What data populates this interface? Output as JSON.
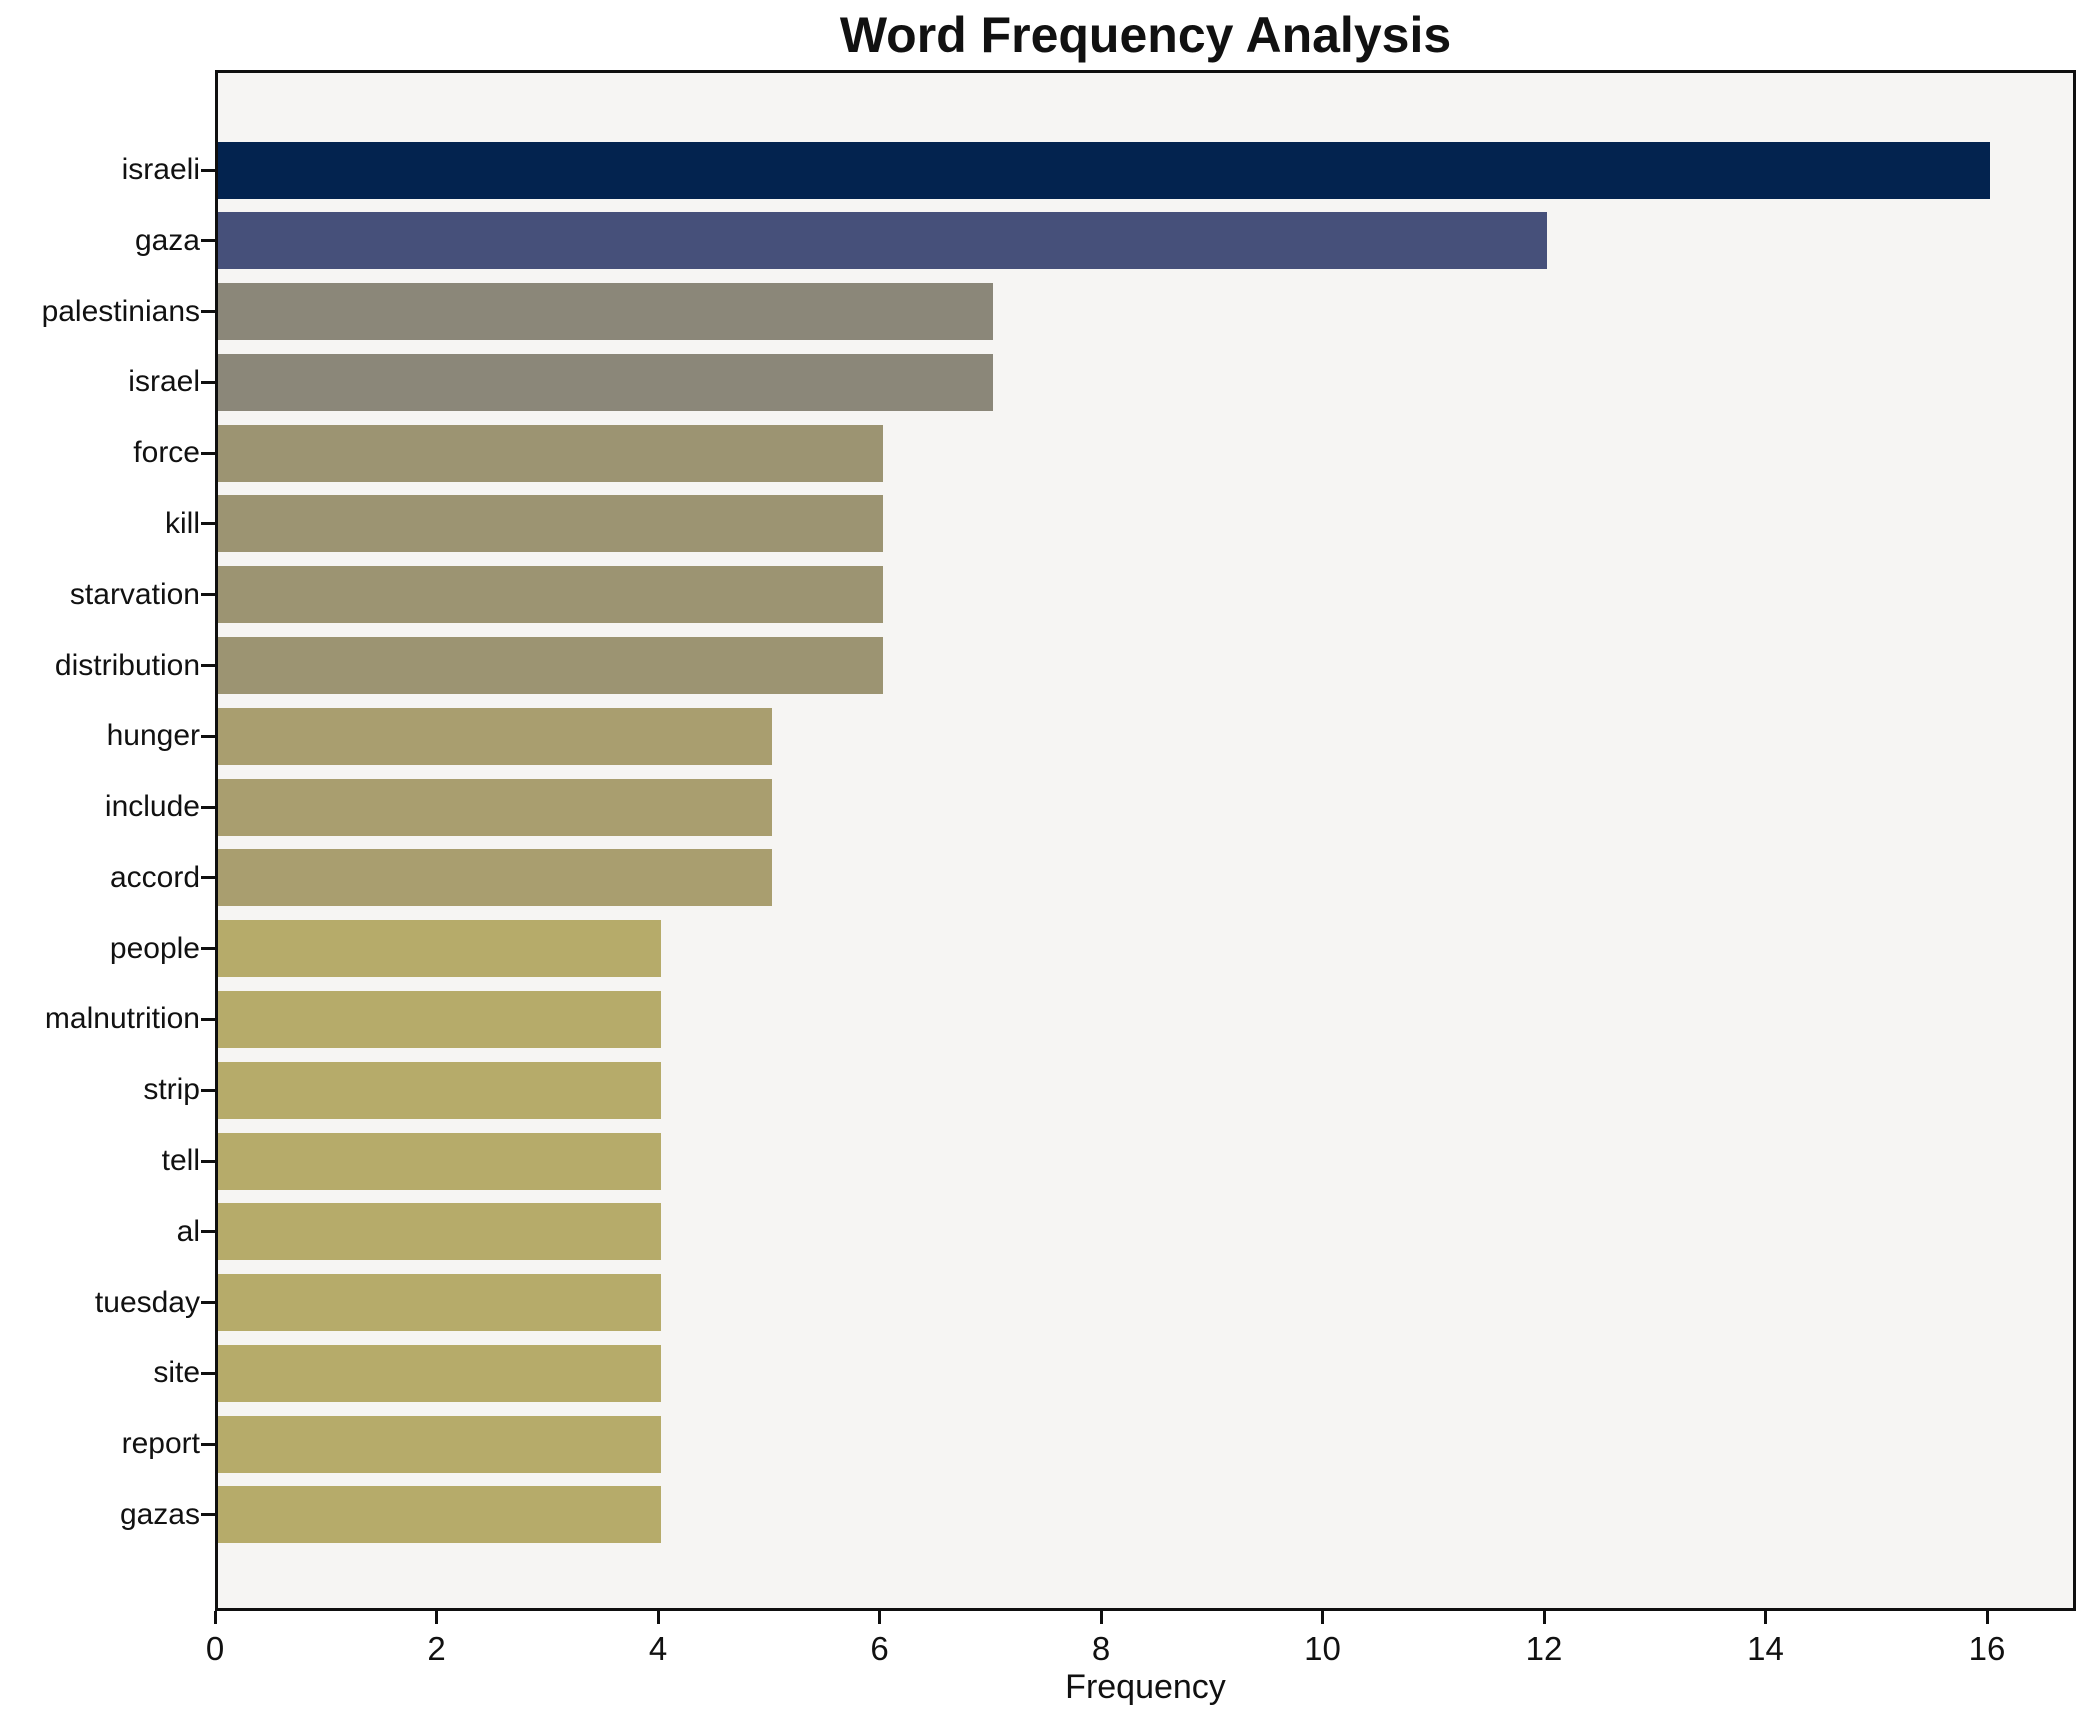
{
  "chart_data": {
    "type": "bar",
    "orientation": "horizontal",
    "title": "Word Frequency Analysis",
    "xlabel": "Frequency",
    "ylabel": "",
    "categories": [
      "israeli",
      "gaza",
      "palestinians",
      "israel",
      "force",
      "kill",
      "starvation",
      "distribution",
      "hunger",
      "include",
      "accord",
      "people",
      "malnutrition",
      "strip",
      "tell",
      "al",
      "tuesday",
      "site",
      "report",
      "gazas"
    ],
    "values": [
      16,
      12,
      7,
      7,
      6,
      6,
      6,
      6,
      5,
      5,
      5,
      4,
      4,
      4,
      4,
      4,
      4,
      4,
      4,
      4
    ],
    "bar_colors": [
      "#03234f",
      "#46507a",
      "#8b8779",
      "#8b8779",
      "#9c9472",
      "#9c9472",
      "#9c9472",
      "#9c9472",
      "#a99e6f",
      "#a99e6f",
      "#a99e6f",
      "#b6ab6a",
      "#b6ab6a",
      "#b6ab6a",
      "#b6ab6a",
      "#b6ab6a",
      "#b6ab6a",
      "#b6ab6a",
      "#b6ab6a",
      "#b6ab6a"
    ],
    "x_ticks": [
      0,
      2,
      4,
      6,
      8,
      10,
      12,
      14,
      16
    ],
    "xlim": [
      0,
      16.8
    ],
    "grid": false,
    "legend_position": "none",
    "plot_background": "#f6f5f3",
    "figure_background": "#ffffff",
    "accent_dark": "#03234f",
    "accent_light": "#b6ab6a"
  }
}
